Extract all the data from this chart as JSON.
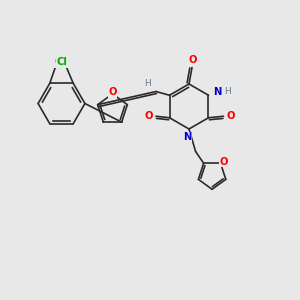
{
  "background_color": "#e8e8e8",
  "bond_color": "#2a2a2a",
  "atom_colors": {
    "O": "#ff0000",
    "N": "#0000cd",
    "Cl": "#00aa00",
    "H": "#708090",
    "C": "#2a2a2a"
  },
  "lw": 1.2,
  "font_size": 7.2,
  "xlim": [
    0,
    10
  ],
  "ylim": [
    0,
    10
  ]
}
